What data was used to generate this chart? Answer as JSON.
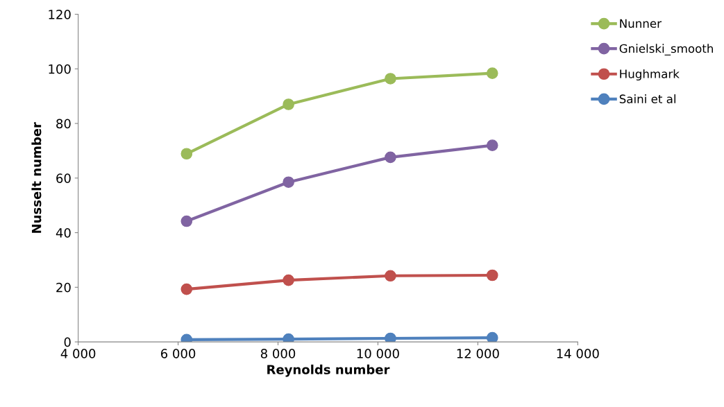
{
  "chart_data": {
    "type": "line",
    "xlabel": "Reynolds number",
    "ylabel": "Nusselt number",
    "x": [
      6170,
      8210,
      10250,
      12290
    ],
    "series": [
      {
        "name": "Nunner",
        "color": "#9bbb59",
        "values": [
          68.9,
          87.0,
          96.4,
          98.4
        ]
      },
      {
        "name": "Gnielski_smooth",
        "color": "#8064a2",
        "values": [
          44.2,
          58.5,
          67.6,
          72.0
        ]
      },
      {
        "name": "Hughmark",
        "color": "#c0504d",
        "values": [
          19.3,
          22.6,
          24.2,
          24.4
        ]
      },
      {
        "name": "Saini et al",
        "color": "#4f81bd",
        "values": [
          0.8,
          1.0,
          1.3,
          1.5
        ]
      }
    ],
    "xlim": [
      4000,
      14000
    ],
    "xticks": [
      {
        "value": 4000,
        "label": "4 000"
      },
      {
        "value": 6000,
        "label": "6 000"
      },
      {
        "value": 8000,
        "label": "8 000"
      },
      {
        "value": 10000,
        "label": "10 000"
      },
      {
        "value": 12000,
        "label": "12 000"
      },
      {
        "value": 14000,
        "label": "14 000"
      }
    ],
    "ylim": [
      0,
      120
    ],
    "yticks": [
      0,
      20,
      40,
      60,
      80,
      100,
      120
    ],
    "grid": false,
    "legend": "top right",
    "marker": "circle",
    "line_style": "solid"
  }
}
